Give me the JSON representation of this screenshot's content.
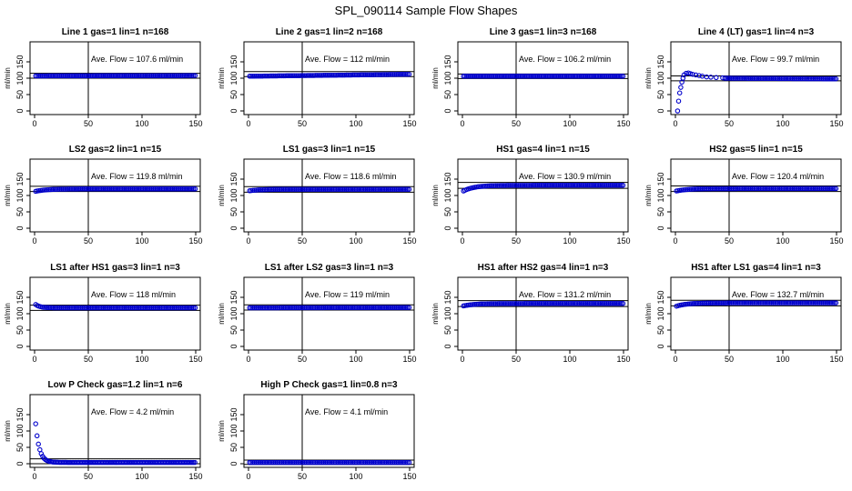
{
  "page_title": "SPL_090114  Sample Flow Shapes",
  "colors": {
    "points": "#0000cc",
    "axes": "#000000",
    "background": "#ffffff"
  },
  "chart_data": [
    {
      "type": "scatter",
      "title": "Line 1 gas=1 lin=1 n=168",
      "ylabel": "ml/min",
      "xlim": [
        0,
        150
      ],
      "ylim": [
        0,
        200
      ],
      "xticks": [
        0,
        50,
        100,
        150
      ],
      "yticks": [
        0,
        50,
        100,
        150
      ],
      "vline": 50,
      "hlines": [
        115,
        100
      ],
      "annotation": "Ave. Flow = 107.6  ml/min",
      "series": [
        {
          "shape": "constant",
          "x": [
            0,
            150
          ],
          "y": [
            107,
            108
          ]
        }
      ]
    },
    {
      "type": "scatter",
      "title": "Line 2 gas=1 lin=2 n=168",
      "ylabel": "ml/min",
      "xlim": [
        0,
        150
      ],
      "ylim": [
        0,
        200
      ],
      "xticks": [
        0,
        50,
        100,
        150
      ],
      "yticks": [
        0,
        50,
        100,
        150
      ],
      "vline": 50,
      "hlines": [
        120,
        105
      ],
      "annotation": "Ave. Flow =  112  ml/min",
      "series": [
        {
          "shape": "constant",
          "x": [
            0,
            150
          ],
          "y": [
            106,
            112
          ]
        }
      ]
    },
    {
      "type": "scatter",
      "title": "Line 3 gas=1 lin=3 n=168",
      "ylabel": "ml/min",
      "xlim": [
        0,
        150
      ],
      "ylim": [
        0,
        200
      ],
      "xticks": [
        0,
        50,
        100,
        150
      ],
      "yticks": [
        0,
        50,
        100,
        150
      ],
      "vline": 50,
      "hlines": [
        113,
        99
      ],
      "annotation": "Ave. Flow = 106.2  ml/min",
      "series": [
        {
          "shape": "constant",
          "x": [
            0,
            150
          ],
          "y": [
            106,
            106
          ]
        }
      ]
    },
    {
      "type": "scatter",
      "title": "Line 4 (LT) gas=1 lin=4 n=3",
      "ylabel": "ml/min",
      "xlim": [
        0,
        150
      ],
      "ylim": [
        0,
        200
      ],
      "xticks": [
        0,
        50,
        100,
        150
      ],
      "yticks": [
        0,
        50,
        100,
        150
      ],
      "vline": 50,
      "hlines": [
        107,
        92
      ],
      "annotation": "Ave. Flow =  99.7  ml/min",
      "series": [
        {
          "shape": "overshoot",
          "x": [
            0,
            150
          ],
          "y": [
            0,
            100
          ]
        }
      ]
    },
    {
      "type": "scatter",
      "title": "LS2 gas=2 lin=1 n=15",
      "ylabel": "ml/min",
      "xlim": [
        0,
        150
      ],
      "ylim": [
        0,
        200
      ],
      "xticks": [
        0,
        50,
        100,
        150
      ],
      "yticks": [
        0,
        50,
        100,
        150
      ],
      "vline": 50,
      "hlines": [
        128,
        112
      ],
      "annotation": "Ave. Flow = 119.8  ml/min",
      "series": [
        {
          "shape": "rise",
          "x": [
            0,
            150
          ],
          "y": [
            112,
            120
          ]
        }
      ]
    },
    {
      "type": "scatter",
      "title": "LS1 gas=3 lin=1 n=15",
      "ylabel": "ml/min",
      "xlim": [
        0,
        150
      ],
      "ylim": [
        0,
        200
      ],
      "xticks": [
        0,
        50,
        100,
        150
      ],
      "yticks": [
        0,
        50,
        100,
        150
      ],
      "vline": 50,
      "hlines": [
        127,
        110
      ],
      "annotation": "Ave. Flow = 118.6  ml/min",
      "series": [
        {
          "shape": "rise",
          "x": [
            0,
            150
          ],
          "y": [
            114,
            119
          ]
        }
      ]
    },
    {
      "type": "scatter",
      "title": "HS1 gas=4 lin=1 n=15",
      "ylabel": "ml/min",
      "xlim": [
        0,
        150
      ],
      "ylim": [
        0,
        200
      ],
      "xticks": [
        0,
        50,
        100,
        150
      ],
      "yticks": [
        0,
        50,
        100,
        150
      ],
      "vline": 50,
      "hlines": [
        140,
        122
      ],
      "annotation": "Ave. Flow = 130.9  ml/min",
      "series": [
        {
          "shape": "rise",
          "x": [
            0,
            150
          ],
          "y": [
            112,
            131
          ]
        }
      ]
    },
    {
      "type": "scatter",
      "title": "HS2 gas=5 lin=1 n=15",
      "ylabel": "ml/min",
      "xlim": [
        0,
        150
      ],
      "ylim": [
        0,
        200
      ],
      "xticks": [
        0,
        50,
        100,
        150
      ],
      "yticks": [
        0,
        50,
        100,
        150
      ],
      "vline": 50,
      "hlines": [
        129,
        112
      ],
      "annotation": "Ave. Flow = 120.4  ml/min",
      "series": [
        {
          "shape": "rise",
          "x": [
            0,
            150
          ],
          "y": [
            113,
            121
          ]
        }
      ]
    },
    {
      "type": "scatter",
      "title": "LS1 after HS1 gas=3 lin=1 n=3",
      "ylabel": "ml/min",
      "xlim": [
        0,
        150
      ],
      "ylim": [
        0,
        200
      ],
      "xticks": [
        0,
        50,
        100,
        150
      ],
      "yticks": [
        0,
        50,
        100,
        150
      ],
      "vline": 50,
      "hlines": [
        126,
        110
      ],
      "annotation": "Ave. Flow =  118  ml/min",
      "series": [
        {
          "shape": "drop",
          "x": [
            0,
            150
          ],
          "y": [
            131,
            118
          ]
        }
      ]
    },
    {
      "type": "scatter",
      "title": "LS1 after LS2 gas=3 lin=1 n=3",
      "ylabel": "ml/min",
      "xlim": [
        0,
        150
      ],
      "ylim": [
        0,
        200
      ],
      "xticks": [
        0,
        50,
        100,
        150
      ],
      "yticks": [
        0,
        50,
        100,
        150
      ],
      "vline": 50,
      "hlines": [
        127,
        111
      ],
      "annotation": "Ave. Flow =  119  ml/min",
      "series": [
        {
          "shape": "constant",
          "x": [
            0,
            150
          ],
          "y": [
            118,
            119
          ]
        }
      ]
    },
    {
      "type": "scatter",
      "title": "HS1 after HS2 gas=4 lin=1 n=3",
      "ylabel": "ml/min",
      "xlim": [
        0,
        150
      ],
      "ylim": [
        0,
        200
      ],
      "xticks": [
        0,
        50,
        100,
        150
      ],
      "yticks": [
        0,
        50,
        100,
        150
      ],
      "vline": 50,
      "hlines": [
        140,
        122
      ],
      "annotation": "Ave. Flow = 131.2  ml/min",
      "series": [
        {
          "shape": "rise",
          "x": [
            0,
            150
          ],
          "y": [
            123,
            131
          ]
        }
      ]
    },
    {
      "type": "scatter",
      "title": "HS1 after LS1 gas=4 lin=1 n=3",
      "ylabel": "ml/min",
      "xlim": [
        0,
        150
      ],
      "ylim": [
        0,
        200
      ],
      "xticks": [
        0,
        50,
        100,
        150
      ],
      "yticks": [
        0,
        50,
        100,
        150
      ],
      "vline": 50,
      "hlines": [
        141,
        124
      ],
      "annotation": "Ave. Flow = 132.7  ml/min",
      "series": [
        {
          "shape": "rise",
          "x": [
            0,
            150
          ],
          "y": [
            122,
            133
          ]
        }
      ]
    },
    {
      "type": "scatter",
      "title": "Low P Check gas=1.2 lin=1 n=6",
      "ylabel": "ml/min",
      "xlim": [
        0,
        150
      ],
      "ylim": [
        0,
        200
      ],
      "xticks": [
        0,
        50,
        100,
        150
      ],
      "yticks": [
        0,
        50,
        100,
        150
      ],
      "vline": 50,
      "hlines": [
        15,
        0
      ],
      "annotation": "Ave. Flow =  4.2  ml/min",
      "series": [
        {
          "shape": "decay",
          "x": [
            0,
            150
          ],
          "y": [
            122,
            4
          ]
        }
      ]
    },
    {
      "type": "scatter",
      "title": "High P Check gas=1 lin=0.8 n=3",
      "ylabel": "ml/min",
      "xlim": [
        0,
        150
      ],
      "ylim": [
        0,
        200
      ],
      "xticks": [
        0,
        50,
        100,
        150
      ],
      "yticks": [
        0,
        50,
        100,
        150
      ],
      "vline": 50,
      "hlines": [
        11,
        -2
      ],
      "annotation": "Ave. Flow =  4.1  ml/min",
      "series": [
        {
          "shape": "constant",
          "x": [
            0,
            150
          ],
          "y": [
            4,
            4
          ]
        }
      ]
    }
  ]
}
